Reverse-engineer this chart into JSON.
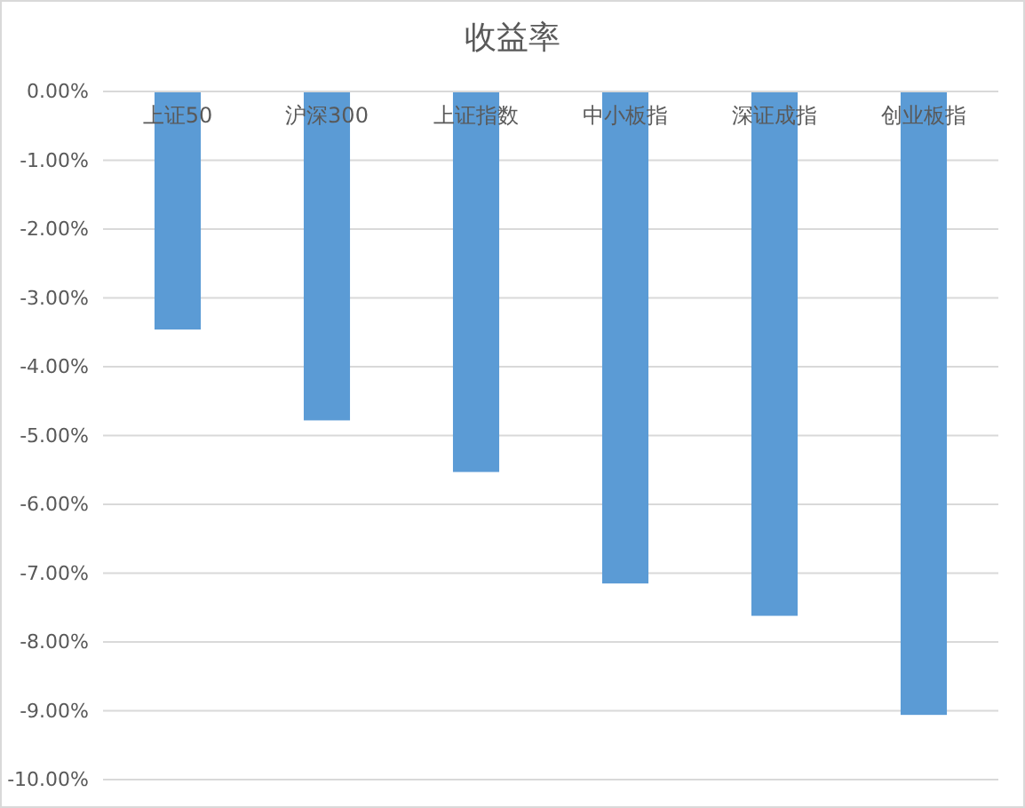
{
  "chart_data": {
    "type": "bar",
    "title": "收益率",
    "categories": [
      "上证50",
      "沪深300",
      "上证指数",
      "中小板指",
      "深证成指",
      "创业板指"
    ],
    "values": [
      -3.46,
      -4.78,
      -5.53,
      -7.15,
      -7.62,
      -9.06
    ],
    "color": "#5b9bd5",
    "ylim": [
      -10,
      0
    ],
    "yticks": [
      {
        "value": 0,
        "label": "0.00%"
      },
      {
        "value": -1,
        "label": "-1.00%"
      },
      {
        "value": -2,
        "label": "-2.00%"
      },
      {
        "value": -3,
        "label": "-3.00%"
      },
      {
        "value": -4,
        "label": "-4.00%"
      },
      {
        "value": -5,
        "label": "-5.00%"
      },
      {
        "value": -6,
        "label": "-6.00%"
      },
      {
        "value": -7,
        "label": "-7.00%"
      },
      {
        "value": -8,
        "label": "-8.00%"
      },
      {
        "value": -9,
        "label": "-9.00%"
      },
      {
        "value": -10,
        "label": "-10.00%"
      }
    ],
    "grid": "y"
  }
}
